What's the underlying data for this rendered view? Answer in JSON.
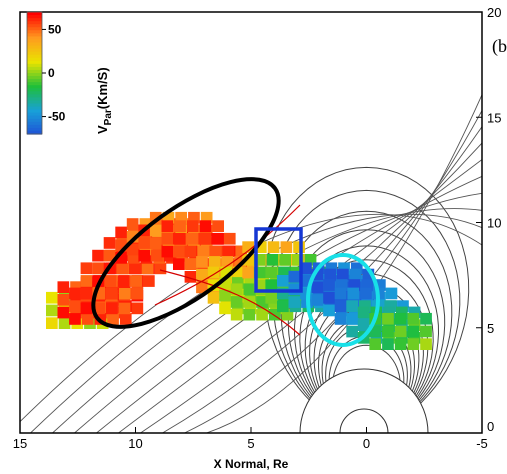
{
  "chart_data": {
    "type": "heatmap",
    "title": "",
    "xlabel": "X Normal, Re",
    "xlim": [
      15,
      -5
    ],
    "ylim": [
      0,
      20
    ],
    "x_ticks": [
      "15",
      "10",
      "5",
      "0",
      "-5"
    ],
    "y_ticks": [
      "0",
      "5",
      "10",
      "15",
      "20"
    ],
    "grid": false,
    "panel_label": "(b",
    "colorbar": {
      "title": "V",
      "title_sub": "Par",
      "title_unit": "(Km/S)",
      "range": [
        -70,
        70
      ],
      "ticks": [
        "50",
        "0",
        "-50"
      ],
      "tick_values": [
        50,
        0,
        -50
      ],
      "colors": [
        "#1f4fd6",
        "#18a0d8",
        "#1fbf3a",
        "#e9e400",
        "#ff9a1f",
        "#ff0000"
      ],
      "placement": "top-left"
    },
    "color_scale": {
      "strong_negative": "#1f4fd6",
      "negative": "#18a0d8",
      "near_zero": "#1fbf3a",
      "weak_positive": "#e9e400",
      "positive": "#ff9a1f",
      "strong_positive": "#ff0000"
    },
    "cells": [
      {
        "x": 12.5,
        "y": 5.8,
        "v": 10
      },
      {
        "x": 12.0,
        "y": 6.3,
        "v": 60
      },
      {
        "x": 11.5,
        "y": 6.0,
        "v": 60
      },
      {
        "x": 11.0,
        "y": 6.5,
        "v": 60
      },
      {
        "x": 11.0,
        "y": 7.2,
        "v": 55
      },
      {
        "x": 10.5,
        "y": 7.8,
        "v": 60
      },
      {
        "x": 10.0,
        "y": 8.4,
        "v": 58
      },
      {
        "x": 9.5,
        "y": 8.9,
        "v": 60
      },
      {
        "x": 9.0,
        "y": 9.3,
        "v": 50
      },
      {
        "x": 8.5,
        "y": 9.0,
        "v": 60
      },
      {
        "x": 8.0,
        "y": 9.6,
        "v": 45
      },
      {
        "x": 7.5,
        "y": 9.2,
        "v": 60
      },
      {
        "x": 7.0,
        "y": 8.6,
        "v": 60
      },
      {
        "x": 6.5,
        "y": 8.0,
        "v": 55
      },
      {
        "x": 6.0,
        "y": 7.5,
        "v": 40
      },
      {
        "x": 5.5,
        "y": 7.0,
        "v": 20
      },
      {
        "x": 5.0,
        "y": 6.5,
        "v": 5
      },
      {
        "x": 4.5,
        "y": 6.2,
        "v": 0
      },
      {
        "x": 4.0,
        "y": 8.2,
        "v": 30
      },
      {
        "x": 3.5,
        "y": 7.6,
        "v": -5
      },
      {
        "x": 3.0,
        "y": 7.0,
        "v": -10
      },
      {
        "x": 2.5,
        "y": 6.6,
        "v": -25
      },
      {
        "x": 2.0,
        "y": 6.8,
        "v": -45
      },
      {
        "x": 1.5,
        "y": 7.2,
        "v": -55
      },
      {
        "x": 1.0,
        "y": 6.9,
        "v": -60
      },
      {
        "x": 0.5,
        "y": 6.4,
        "v": -50
      },
      {
        "x": 0.0,
        "y": 6.0,
        "v": -40
      },
      {
        "x": -0.5,
        "y": 5.4,
        "v": -20
      },
      {
        "x": -1.0,
        "y": 5.1,
        "v": -10
      },
      {
        "x": -1.5,
        "y": 4.8,
        "v": 5
      }
    ],
    "field_line_foot_x": [
      3.8,
      4.2,
      4.6,
      5.0,
      5.4,
      5.9,
      6.4,
      6.9,
      7.5,
      8.1,
      8.8,
      9.6,
      10.5,
      11.5
    ]
  }
}
